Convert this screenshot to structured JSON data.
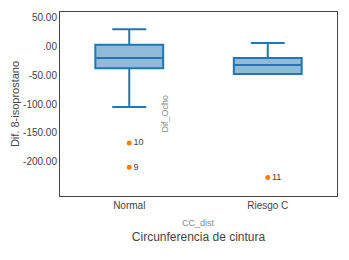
{
  "chart_data": {
    "type": "box",
    "xlabel": "Circunferencia de cintura",
    "ylabel": "Dif. 8-isoprostano",
    "annotations": [
      "Dif_Ocho",
      "CC_dist"
    ],
    "categories": [
      "Normal",
      "Riesgo C"
    ],
    "boxes": [
      {
        "q1": -38,
        "median": -20,
        "q3": 3,
        "whisker_low": -105,
        "whisker_high": 30,
        "outliers": [
          {
            "value": -168,
            "label": "10"
          },
          {
            "value": -210,
            "label": "9"
          }
        ]
      },
      {
        "q1": -48,
        "median": -32,
        "q3": -20,
        "whisker_low": -48,
        "whisker_high": 6,
        "outliers": [
          {
            "value": -228,
            "label": "11"
          }
        ]
      }
    ],
    "ylim": [
      -260,
      60
    ],
    "yticks": [
      {
        "value": 50,
        "label": "50.00"
      },
      {
        "value": 0,
        "label": ".00"
      },
      {
        "value": -50,
        "label": "-50.00"
      },
      {
        "value": -100,
        "label": "-100.00"
      },
      {
        "value": -150,
        "label": "-150.00"
      },
      {
        "value": -200,
        "label": "-200.00"
      }
    ],
    "grid": false
  }
}
